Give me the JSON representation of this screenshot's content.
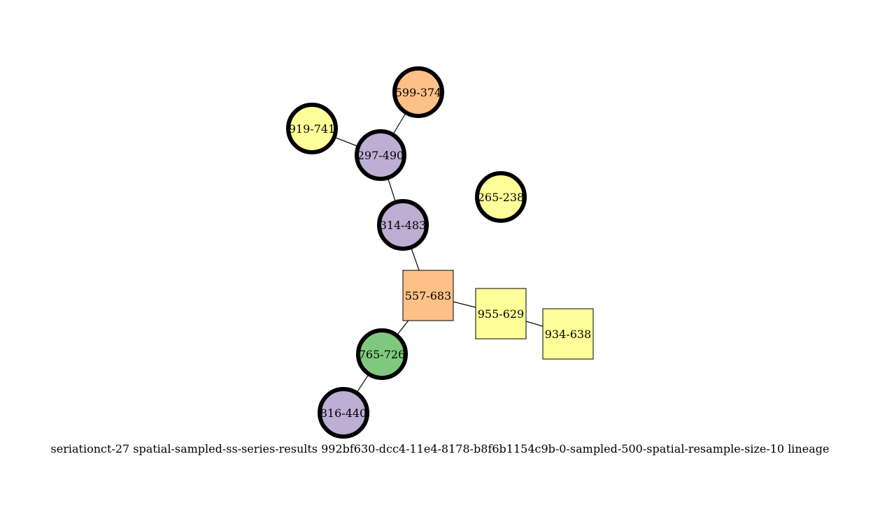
{
  "caption": "seriationct-27  spatial-sampled-ss-series-results  992bf630-dcc4-11e4-8178-b8f6b1154c9b-0-sampled-500-spatial-resample-size-10  lineage",
  "colors": {
    "orange": "#fdc086",
    "yellow": "#ffff99",
    "purple": "#beaed4",
    "green": "#7fc97f",
    "stroke": "#000000"
  },
  "nodes": [
    {
      "id": "599-374",
      "label": "599-374",
      "shape": "circle",
      "color": "orange"
    },
    {
      "id": "919-741",
      "label": "919-741",
      "shape": "circle",
      "color": "yellow"
    },
    {
      "id": "297-490",
      "label": "297-490",
      "shape": "circle",
      "color": "purple"
    },
    {
      "id": "265-238",
      "label": "265-238",
      "shape": "circle",
      "color": "yellow"
    },
    {
      "id": "314-483",
      "label": "314-483",
      "shape": "circle",
      "color": "purple"
    },
    {
      "id": "557-683",
      "label": "557-683",
      "shape": "box",
      "color": "orange"
    },
    {
      "id": "955-629",
      "label": "955-629",
      "shape": "box",
      "color": "yellow"
    },
    {
      "id": "934-638",
      "label": "934-638",
      "shape": "box",
      "color": "yellow"
    },
    {
      "id": "765-726",
      "label": "765-726",
      "shape": "circle",
      "color": "green"
    },
    {
      "id": "816-440",
      "label": "816-440",
      "shape": "circle",
      "color": "purple"
    }
  ],
  "edges": [
    [
      "599-374",
      "297-490"
    ],
    [
      "919-741",
      "297-490"
    ],
    [
      "297-490",
      "314-483"
    ],
    [
      "314-483",
      "557-683"
    ],
    [
      "557-683",
      "955-629"
    ],
    [
      "955-629",
      "934-638"
    ],
    [
      "557-683",
      "765-726"
    ],
    [
      "765-726",
      "816-440"
    ]
  ]
}
